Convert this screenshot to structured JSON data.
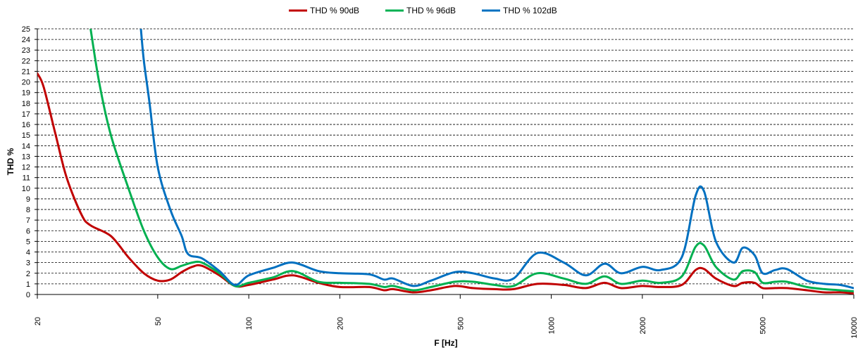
{
  "chart_data": {
    "type": "line",
    "xlabel": "F [Hz]",
    "ylabel": "THD %",
    "xscale": "log",
    "xlim": [
      20,
      10000
    ],
    "ylim": [
      0,
      25
    ],
    "x_ticks": [
      20,
      50,
      100,
      200,
      500,
      1000,
      2000,
      5000,
      10000
    ],
    "y_ticks": [
      0,
      1,
      2,
      3,
      4,
      5,
      6,
      7,
      8,
      9,
      10,
      11,
      12,
      13,
      14,
      15,
      16,
      17,
      18,
      19,
      20,
      21,
      22,
      23,
      24,
      25
    ],
    "grid": "horizontal dashed",
    "legend_position": "top",
    "series": [
      {
        "name": "THD % 90dB",
        "color": "#C00000",
        "points": [
          [
            20,
            20.8
          ],
          [
            21,
            19.5
          ],
          [
            23,
            15
          ],
          [
            25,
            11
          ],
          [
            28,
            7.5
          ],
          [
            30,
            6.5
          ],
          [
            35,
            5.5
          ],
          [
            40,
            3.5
          ],
          [
            45,
            2
          ],
          [
            50,
            1.3
          ],
          [
            55,
            1.4
          ],
          [
            60,
            2.1
          ],
          [
            65,
            2.6
          ],
          [
            70,
            2.7
          ],
          [
            80,
            1.8
          ],
          [
            90,
            0.8
          ],
          [
            100,
            0.9
          ],
          [
            120,
            1.4
          ],
          [
            140,
            1.8
          ],
          [
            170,
            1.1
          ],
          [
            200,
            0.7
          ],
          [
            250,
            0.7
          ],
          [
            280,
            0.4
          ],
          [
            300,
            0.5
          ],
          [
            350,
            0.2
          ],
          [
            400,
            0.4
          ],
          [
            480,
            0.8
          ],
          [
            550,
            0.6
          ],
          [
            650,
            0.5
          ],
          [
            750,
            0.5
          ],
          [
            900,
            1.0
          ],
          [
            1100,
            0.9
          ],
          [
            1300,
            0.6
          ],
          [
            1500,
            1.1
          ],
          [
            1700,
            0.6
          ],
          [
            2000,
            0.8
          ],
          [
            2300,
            0.7
          ],
          [
            2700,
            0.9
          ],
          [
            3000,
            2.3
          ],
          [
            3200,
            2.4
          ],
          [
            3500,
            1.5
          ],
          [
            4000,
            0.8
          ],
          [
            4300,
            1.1
          ],
          [
            4700,
            1.1
          ],
          [
            5000,
            0.6
          ],
          [
            5500,
            0.6
          ],
          [
            6000,
            0.6
          ],
          [
            7000,
            0.4
          ],
          [
            8000,
            0.2
          ],
          [
            9000,
            0.2
          ],
          [
            10000,
            0.1
          ]
        ]
      },
      {
        "name": "THD % 96dB",
        "color": "#00B050",
        "points": [
          [
            30,
            25
          ],
          [
            32,
            20
          ],
          [
            35,
            15
          ],
          [
            40,
            10
          ],
          [
            45,
            6
          ],
          [
            50,
            3.5
          ],
          [
            55,
            2.4
          ],
          [
            60,
            2.7
          ],
          [
            65,
            3
          ],
          [
            70,
            3
          ],
          [
            80,
            2.0
          ],
          [
            90,
            0.8
          ],
          [
            100,
            1.1
          ],
          [
            120,
            1.6
          ],
          [
            140,
            2.2
          ],
          [
            170,
            1.2
          ],
          [
            200,
            1.1
          ],
          [
            250,
            1.0
          ],
          [
            280,
            0.7
          ],
          [
            300,
            0.8
          ],
          [
            350,
            0.4
          ],
          [
            400,
            0.7
          ],
          [
            480,
            1.2
          ],
          [
            550,
            1.2
          ],
          [
            650,
            0.9
          ],
          [
            750,
            0.8
          ],
          [
            900,
            2.0
          ],
          [
            1100,
            1.5
          ],
          [
            1300,
            1.0
          ],
          [
            1500,
            1.7
          ],
          [
            1700,
            1.0
          ],
          [
            2000,
            1.3
          ],
          [
            2300,
            1.1
          ],
          [
            2700,
            1.7
          ],
          [
            3000,
            4.5
          ],
          [
            3200,
            4.6
          ],
          [
            3500,
            2.6
          ],
          [
            4000,
            1.4
          ],
          [
            4300,
            2.2
          ],
          [
            4700,
            2.1
          ],
          [
            5000,
            1.1
          ],
          [
            5500,
            1.2
          ],
          [
            6000,
            1.2
          ],
          [
            7000,
            0.7
          ],
          [
            8000,
            0.5
          ],
          [
            9000,
            0.4
          ],
          [
            10000,
            0.3
          ]
        ]
      },
      {
        "name": "THD % 102dB",
        "color": "#0070C0",
        "points": [
          [
            44,
            25
          ],
          [
            45,
            22
          ],
          [
            47,
            18
          ],
          [
            50,
            12
          ],
          [
            55,
            8
          ],
          [
            60,
            5.5
          ],
          [
            63,
            3.8
          ],
          [
            70,
            3.4
          ],
          [
            80,
            2.2
          ],
          [
            90,
            0.9
          ],
          [
            100,
            1.8
          ],
          [
            120,
            2.5
          ],
          [
            140,
            3.0
          ],
          [
            170,
            2.2
          ],
          [
            200,
            2.0
          ],
          [
            250,
            1.9
          ],
          [
            280,
            1.4
          ],
          [
            300,
            1.5
          ],
          [
            350,
            0.8
          ],
          [
            400,
            1.3
          ],
          [
            480,
            2.1
          ],
          [
            550,
            2.0
          ],
          [
            650,
            1.5
          ],
          [
            750,
            1.5
          ],
          [
            900,
            3.9
          ],
          [
            1100,
            3.0
          ],
          [
            1300,
            1.8
          ],
          [
            1500,
            2.9
          ],
          [
            1700,
            2.0
          ],
          [
            2000,
            2.6
          ],
          [
            2300,
            2.3
          ],
          [
            2700,
            3.5
          ],
          [
            3000,
            9.3
          ],
          [
            3200,
            9.7
          ],
          [
            3500,
            5.0
          ],
          [
            4000,
            3.0
          ],
          [
            4300,
            4.4
          ],
          [
            4700,
            3.7
          ],
          [
            5000,
            2.0
          ],
          [
            5500,
            2.3
          ],
          [
            6000,
            2.4
          ],
          [
            7000,
            1.3
          ],
          [
            8000,
            1.0
          ],
          [
            9000,
            0.9
          ],
          [
            10000,
            0.6
          ]
        ]
      }
    ]
  }
}
